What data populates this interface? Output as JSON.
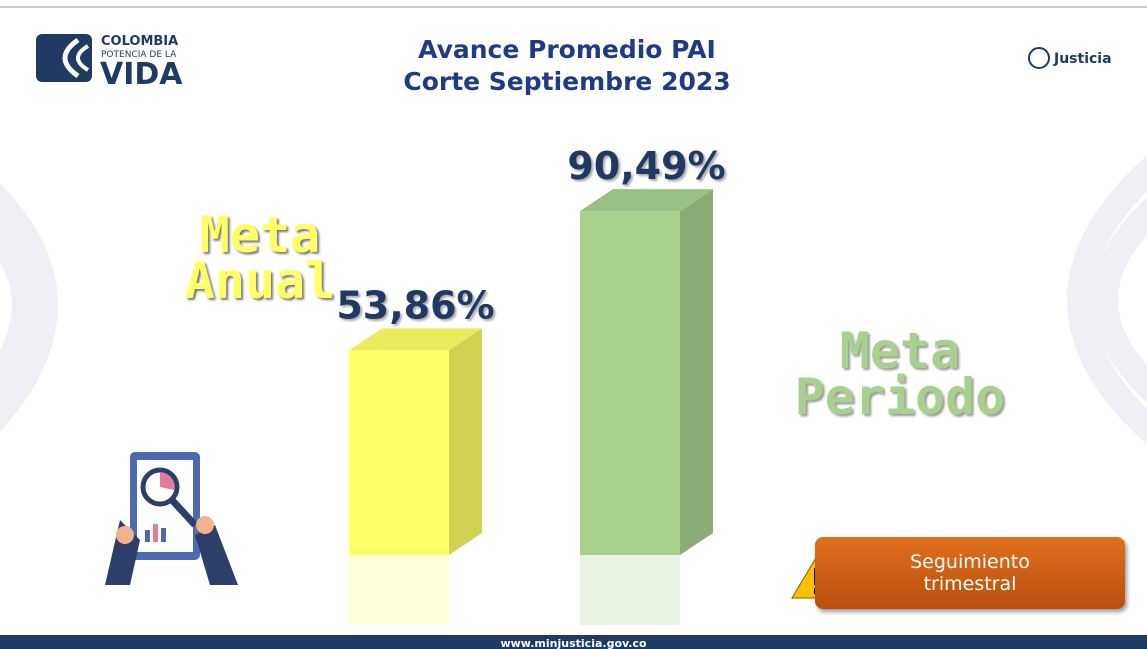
{
  "header": {
    "logo_line1": "COLOMBIA",
    "logo_line2": "POTENCIA DE LA",
    "logo_line3": "VIDA",
    "ministry": "Justicia"
  },
  "chart_data": {
    "type": "bar",
    "title": "Avance Promedio PAI",
    "subtitle": "Corte Septiembre 2023",
    "categories": [
      "Meta Anual",
      "Meta Periodo"
    ],
    "values": [
      53.86,
      90.49
    ],
    "value_labels": [
      "53,86%",
      "90,49%"
    ],
    "colors": [
      "#ffff66",
      "#a9d18e"
    ]
  },
  "note": "Seguimiento trimestral",
  "footer": "www.minjusticia.gov.co"
}
